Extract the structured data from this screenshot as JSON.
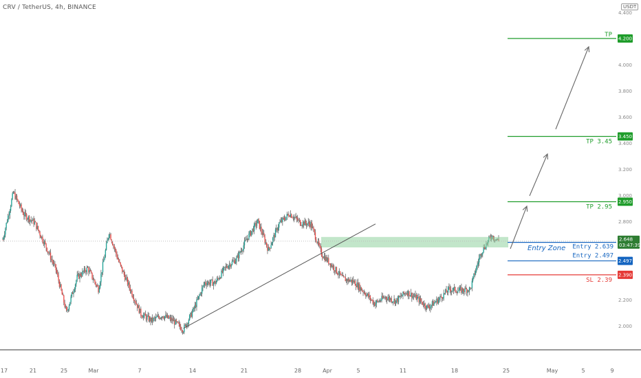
{
  "header": {
    "symbol_title": "CRV / TetherUS, 4h, BINANCE",
    "currency": "USDT"
  },
  "colors": {
    "up": "#26a69a",
    "down": "#ef5350",
    "tp": "#1e9c2a",
    "entry": "#1565c0",
    "sl": "#e53935",
    "zone": "#8fd19e"
  },
  "chart_data": {
    "type": "candlestick",
    "title": "CRV / TetherUS, 4h, BINANCE",
    "y_unit": "USDT",
    "ylim": [
      1.9,
      4.4
    ],
    "y_ticks": [
      "4.400",
      "4.000",
      "3.800",
      "3.600",
      "3.400",
      "3.200",
      "3.000",
      "2.800",
      "2.200",
      "2.000"
    ],
    "x_ticks": [
      "17",
      "21",
      "25",
      "Mar",
      "7",
      "14",
      "21",
      "28",
      "Apr",
      "5",
      "11",
      "18",
      "25",
      "May",
      "5",
      "9"
    ],
    "price_path": [
      [
        0,
        2.66
      ],
      [
        3,
        3.02
      ],
      [
        6,
        2.85
      ],
      [
        9,
        2.79
      ],
      [
        12,
        2.62
      ],
      [
        15,
        2.43
      ],
      [
        18,
        2.1
      ],
      [
        21,
        2.37
      ],
      [
        24,
        2.44
      ],
      [
        27,
        2.28
      ],
      [
        30,
        2.72
      ],
      [
        33,
        2.47
      ],
      [
        36,
        2.28
      ],
      [
        39,
        2.09
      ],
      [
        42,
        2.04
      ],
      [
        45,
        2.08
      ],
      [
        48,
        2.04
      ],
      [
        51,
        1.97
      ],
      [
        54,
        2.13
      ],
      [
        57,
        2.33
      ],
      [
        60,
        2.33
      ],
      [
        63,
        2.45
      ],
      [
        66,
        2.51
      ],
      [
        69,
        2.67
      ],
      [
        72,
        2.8
      ],
      [
        75,
        2.58
      ],
      [
        78,
        2.78
      ],
      [
        81,
        2.86
      ],
      [
        84,
        2.79
      ],
      [
        87,
        2.78
      ],
      [
        90,
        2.55
      ],
      [
        93,
        2.46
      ],
      [
        96,
        2.36
      ],
      [
        99,
        2.34
      ],
      [
        102,
        2.26
      ],
      [
        105,
        2.17
      ],
      [
        108,
        2.22
      ],
      [
        111,
        2.19
      ],
      [
        114,
        2.26
      ],
      [
        117,
        2.21
      ],
      [
        120,
        2.14
      ],
      [
        123,
        2.2
      ],
      [
        126,
        2.28
      ],
      [
        129,
        2.27
      ],
      [
        132,
        2.28
      ],
      [
        133,
        2.38
      ],
      [
        135,
        2.56
      ],
      [
        138,
        2.69
      ],
      [
        140,
        2.65
      ]
    ],
    "levels": [
      {
        "name": "TP",
        "value": 4.2,
        "tag": "4.200",
        "color_key": "tp"
      },
      {
        "name": "TP 3.45",
        "value": 3.45,
        "tag": "3.450",
        "color_key": "tp"
      },
      {
        "name": "TP 2.95",
        "value": 2.95,
        "tag": "2.950",
        "color_key": "tp"
      },
      {
        "name": "Entry 2.639",
        "value": 2.639,
        "tag": "2.639",
        "color_key": "entry"
      },
      {
        "name": "Entry 2.497",
        "value": 2.497,
        "tag": "2.497",
        "color_key": "entry"
      },
      {
        "name": "SL 2.39",
        "value": 2.39,
        "tag": "2.390",
        "color_key": "sl"
      }
    ],
    "current_price": {
      "value": 2.648,
      "tag": "2.648",
      "countdown": "03:47:39"
    },
    "entry_zone_label": "Entry Zone",
    "support_zone": {
      "y_low": 2.6,
      "y_high": 2.68
    },
    "trendline": {
      "from": [
        51,
        1.98
      ],
      "to": [
        99,
        2.78
      ]
    },
    "legend": "none",
    "grid": false
  }
}
